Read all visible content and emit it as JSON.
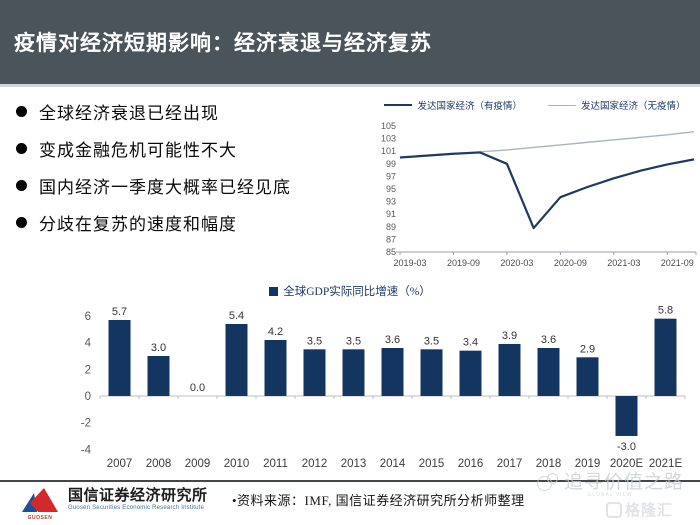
{
  "header": {
    "title": "疫情对经济短期影响：经济衰退与经济复苏",
    "bg_color": "#4A545A",
    "text_color": "#FFFFFF"
  },
  "bullets": [
    "全球经济衰退已经出现",
    "变成金融危机可能性不大",
    "国内经济一季度大概率已经见底",
    "分歧在复苏的速度和幅度"
  ],
  "chart_data": [
    {
      "type": "line",
      "title": "",
      "x": [
        "2019-03",
        "2019-06",
        "2019-09",
        "2019-12",
        "2020-03",
        "2020-06",
        "2020-09",
        "2020-12",
        "2021-03",
        "2021-06",
        "2021-09",
        "2021-12"
      ],
      "x_tick_every": 2,
      "series": [
        {
          "name": "发达国家经济（有疫情）",
          "color": "#1F3864",
          "width": 2.2,
          "values": [
            100,
            100.3,
            100.6,
            100.8,
            99.0,
            88.8,
            93.7,
            95.3,
            96.7,
            97.9,
            98.9,
            99.7
          ]
        },
        {
          "name": "发达国家经济（无疫情）",
          "color": "#A9B3BF",
          "width": 1.4,
          "values": [
            100,
            100.3,
            100.6,
            100.9,
            101.2,
            101.6,
            102.0,
            102.4,
            102.8,
            103.2,
            103.6,
            104.1
          ]
        }
      ],
      "ylim": [
        85,
        105
      ],
      "ytick_step": 2,
      "legend_position": "top",
      "grid": false,
      "axis_color": "#9aa0a6",
      "tick_label_color": "#595959"
    },
    {
      "type": "bar",
      "legend": "全球GDP实际同比增速（%）",
      "categories": [
        "2007",
        "2008",
        "2009",
        "2010",
        "2011",
        "2012",
        "2013",
        "2014",
        "2015",
        "2016",
        "2017",
        "2018",
        "2019",
        "2020E",
        "2021E"
      ],
      "values": [
        5.7,
        3.0,
        0.0,
        5.4,
        4.2,
        3.5,
        3.5,
        3.6,
        3.5,
        3.4,
        3.9,
        3.6,
        2.9,
        -3.0,
        5.8
      ],
      "bar_color": "#14355F",
      "ylim": [
        -4,
        6
      ],
      "yticks": [
        6,
        4,
        2,
        0,
        -2,
        -4
      ],
      "grid": false,
      "axis_color": "#BFBFBF",
      "tick_label_color": "#595959",
      "value_label_color": "#333333",
      "category_label_color": "#3d3d3d"
    }
  ],
  "footer": {
    "org_name": "国信证券经济研究所",
    "org_name_en": "Guosen Securities Economic Research Institute",
    "logo_caption": "GUOSEN",
    "logo_blue": "#1B4E9B",
    "logo_red": "#D5282A",
    "source": "•资料来源：IMF, 国信证券经济研究所分析师整理"
  },
  "watermarks": {
    "value_road": {
      "text": "追寻价值之路",
      "caption": "GLOBAL VIEW"
    },
    "gelonghui": {
      "text": "格隆汇"
    }
  }
}
